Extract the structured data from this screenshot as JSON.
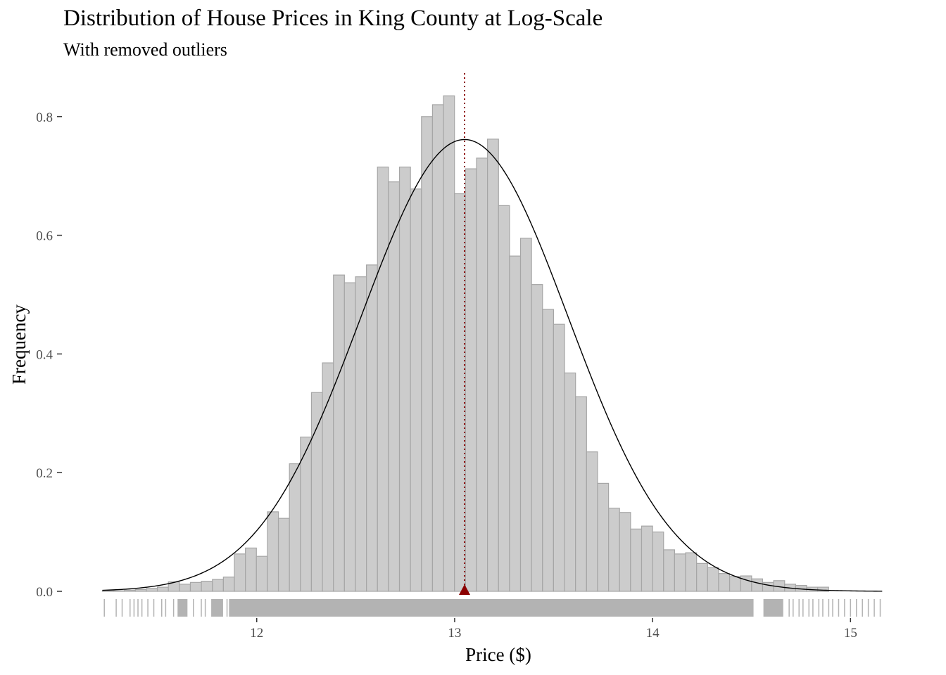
{
  "chart_data": {
    "type": "bar",
    "title": "Distribution of House Prices in King County at Log-Scale",
    "subtitle": "With removed outliers",
    "xlabel": "Price ($)",
    "ylabel": "Frequency",
    "xlim": [
      11.22,
      15.22
    ],
    "ylim": [
      0,
      0.87
    ],
    "xticks": [
      12,
      13,
      14,
      15
    ],
    "yticks": [
      0.0,
      0.2,
      0.4,
      0.6,
      0.8
    ],
    "ytick_labels": [
      "0.0",
      "0.2",
      "0.4",
      "0.6",
      "0.8"
    ],
    "grid": false,
    "bin_width": 0.0556,
    "bin_start": 11.22,
    "histogram_density": [
      0.001,
      0.001,
      0.002,
      0.003,
      0.005,
      0.007,
      0.016,
      0.012,
      0.015,
      0.017,
      0.02,
      0.024,
      0.063,
      0.073,
      0.059,
      0.134,
      0.123,
      0.215,
      0.26,
      0.335,
      0.385,
      0.533,
      0.52,
      0.53,
      0.55,
      0.715,
      0.69,
      0.715,
      0.678,
      0.8,
      0.82,
      0.835,
      0.67,
      0.712,
      0.73,
      0.762,
      0.65,
      0.565,
      0.595,
      0.517,
      0.475,
      0.45,
      0.368,
      0.328,
      0.235,
      0.182,
      0.14,
      0.133,
      0.105,
      0.11,
      0.1,
      0.07,
      0.063,
      0.065,
      0.047,
      0.04,
      0.03,
      0.025,
      0.026,
      0.021,
      0.015,
      0.018,
      0.012,
      0.01,
      0.007,
      0.007
    ],
    "normal_curve": {
      "mean": 13.05,
      "sd": 0.524
    },
    "mean_marker": {
      "x": 13.05,
      "color": "#8b0000"
    },
    "rug": {
      "dense_ranges": [
        [
          11.6,
          11.65
        ],
        [
          11.77,
          11.83
        ],
        [
          11.86,
          14.51
        ],
        [
          14.56,
          14.66
        ]
      ],
      "sparse_x": [
        11.23,
        11.29,
        11.32,
        11.36,
        11.38,
        11.4,
        11.42,
        11.45,
        11.48,
        11.52,
        11.54,
        11.58,
        11.68,
        11.72,
        11.74,
        11.85,
        14.69,
        14.71,
        14.74,
        14.76,
        14.79,
        14.81,
        14.84,
        14.86,
        14.89,
        14.91,
        14.94,
        14.97,
        15.0,
        15.03,
        15.06,
        15.09,
        15.12,
        15.15
      ]
    },
    "colors": {
      "bar_fill": "#cccccc",
      "bar_stroke": "#a6a6a6",
      "curve": "#000000",
      "rug": "#b3b3b3",
      "mean": "#8b0000"
    }
  }
}
